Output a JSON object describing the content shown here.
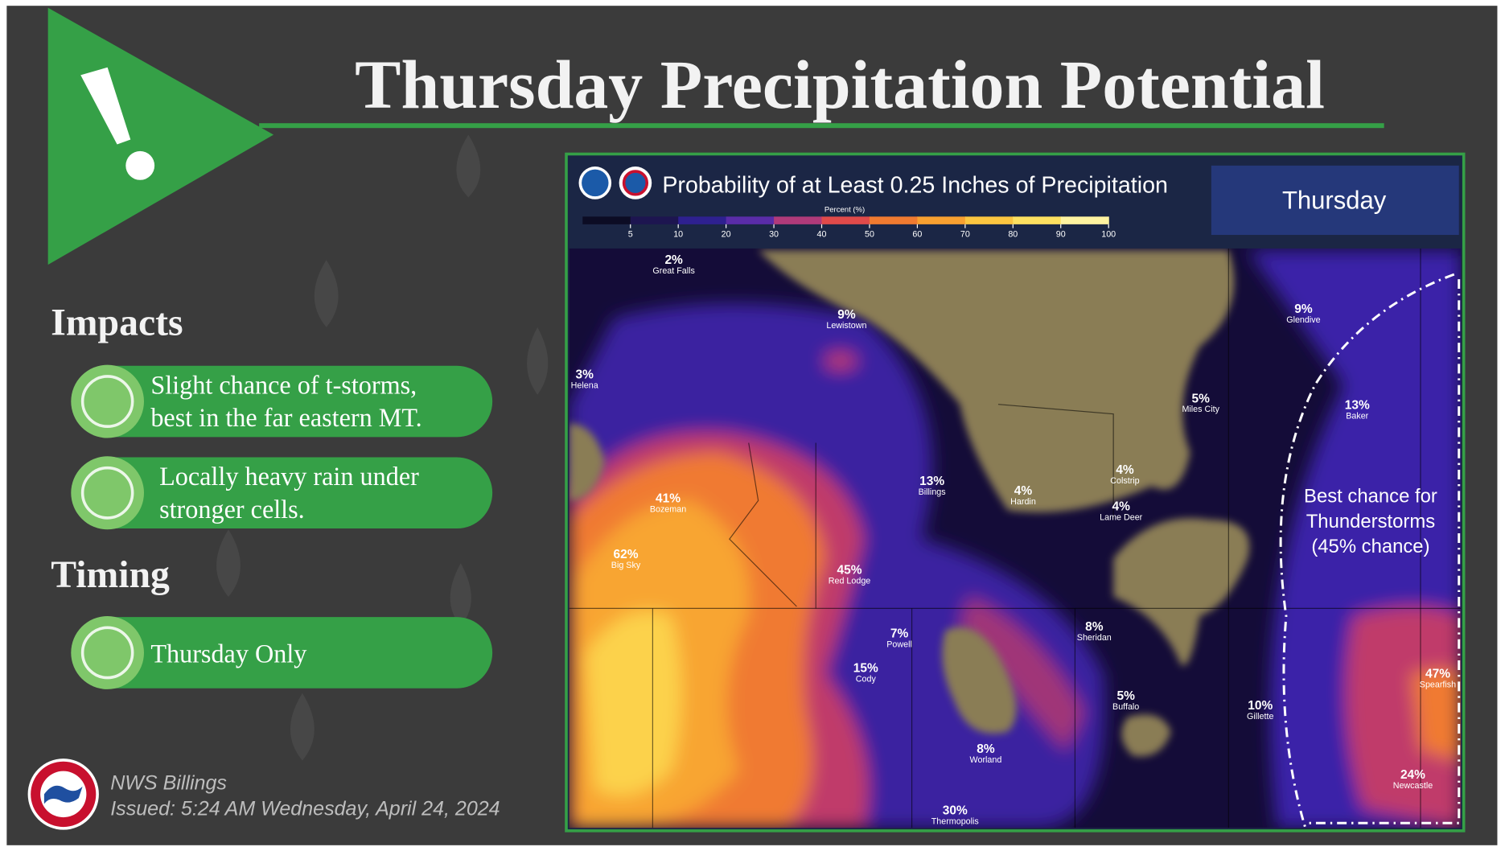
{
  "header": {
    "title": "Thursday Precipitation Potential"
  },
  "impacts": {
    "heading": "Impacts",
    "items": [
      [
        "Slight chance of t-storms,",
        "best in the far eastern MT."
      ],
      [
        "Locally heavy rain under",
        "stronger cells."
      ]
    ]
  },
  "timing": {
    "heading": "Timing",
    "items": [
      [
        "Thursday Only"
      ]
    ]
  },
  "footer": {
    "office": "NWS Billings",
    "issued": "Issued: 5:24 AM Wednesday, April 24, 2024"
  },
  "map": {
    "title": "Probability of at Least 0.25 Inches of Precipitation",
    "day": "Thursday",
    "legend_title": "Percent (%)",
    "legend_ticks": [
      5,
      10,
      20,
      30,
      40,
      50,
      60,
      70,
      80,
      90,
      100
    ],
    "legend_colors": [
      "#0c0c24",
      "#1d1550",
      "#2e2090",
      "#5a2ca8",
      "#b03a7a",
      "#e04a4a",
      "#f07a30",
      "#f8a030",
      "#fbc540",
      "#fde060",
      "#fff3a0"
    ],
    "annotation": [
      "Best chance for",
      "Thunderstorms",
      "(45% chance)"
    ],
    "cities": [
      {
        "pct": "2%",
        "name": "Great Falls"
      },
      {
        "pct": "9%",
        "name": "Lewistown"
      },
      {
        "pct": "3%",
        "name": "Helena"
      },
      {
        "pct": "41%",
        "name": "Bozeman"
      },
      {
        "pct": "62%",
        "name": "Big Sky"
      },
      {
        "pct": "13%",
        "name": "Billings"
      },
      {
        "pct": "45%",
        "name": "Red Lodge"
      },
      {
        "pct": "4%",
        "name": "Hardin"
      },
      {
        "pct": "4%",
        "name": "Colstrip"
      },
      {
        "pct": "4%",
        "name": "Lame Deer"
      },
      {
        "pct": "5%",
        "name": "Miles City"
      },
      {
        "pct": "9%",
        "name": "Glendive"
      },
      {
        "pct": "13%",
        "name": "Baker"
      },
      {
        "pct": "7%",
        "name": "Powell"
      },
      {
        "pct": "15%",
        "name": "Cody"
      },
      {
        "pct": "8%",
        "name": "Sheridan"
      },
      {
        "pct": "5%",
        "name": "Buffalo"
      },
      {
        "pct": "10%",
        "name": "Gillette"
      },
      {
        "pct": "8%",
        "name": "Worland"
      },
      {
        "pct": "47%",
        "name": "Spearfish"
      },
      {
        "pct": "24%",
        "name": "Newcastle"
      },
      {
        "pct": "30%",
        "name": "Thermopolis"
      }
    ]
  }
}
